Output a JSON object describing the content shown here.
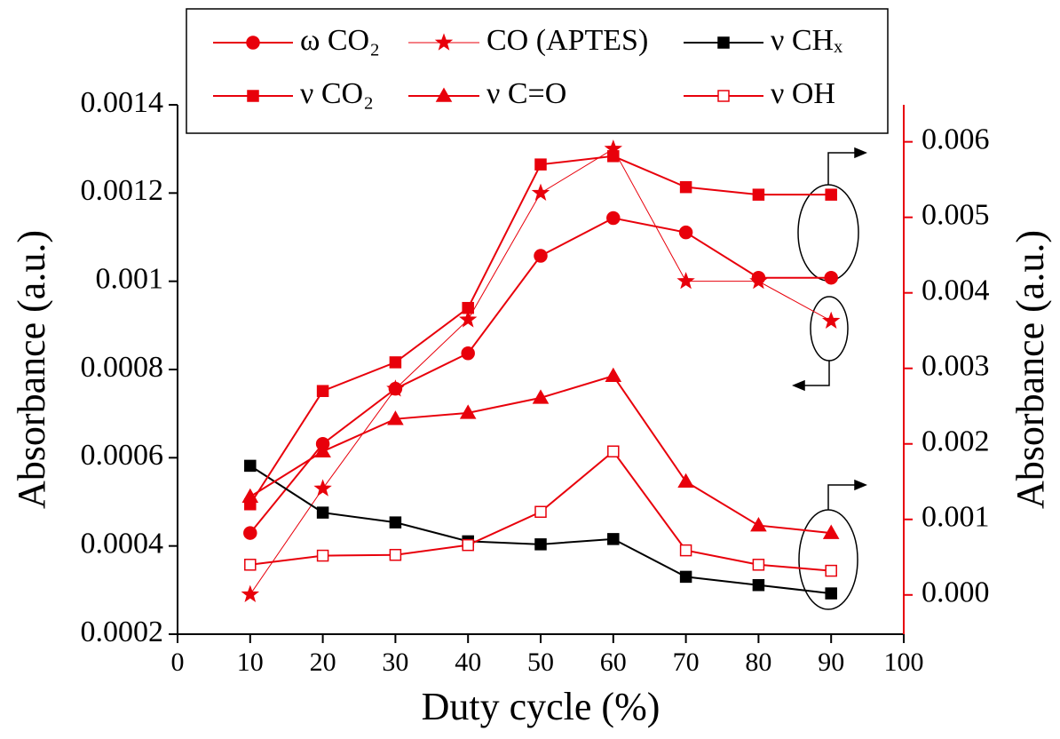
{
  "chart_data": {
    "type": "line",
    "xlabel": "Duty cycle (%)",
    "ylabel": "Absorbance (a.u.)",
    "y2label": "Absorbance (a.u.)",
    "xlim": [
      0,
      100
    ],
    "xticks": [
      0,
      10,
      20,
      30,
      40,
      50,
      60,
      70,
      80,
      90,
      100
    ],
    "ylim": [
      0.0002,
      0.0014
    ],
    "yticks": [
      0.0002,
      0.0004,
      0.0006,
      0.0008,
      0.001,
      0.0012,
      0.0014
    ],
    "y2lim": [
      -0.00052,
      0.00649
    ],
    "y2ticks": [
      {
        "value": 0,
        "label": "0.000"
      },
      0.001,
      0.002,
      0.003,
      0.004,
      0.005,
      0.006
    ],
    "y2color": "#e8000b",
    "x": [
      10,
      20,
      30,
      40,
      50,
      60,
      70,
      80,
      90
    ],
    "series": [
      {
        "name": "ω CO₂",
        "color": "#e8000b",
        "marker": "circle",
        "axis": "y2",
        "values": [
          0.00082,
          0.002,
          0.00273,
          0.0032,
          0.00449,
          0.00499,
          0.0048,
          0.0042,
          0.0042
        ]
      },
      {
        "name": "CO (APTES)",
        "color": "#e8000b",
        "marker": "star",
        "thin": true,
        "values": [
          0.00029,
          0.00053,
          0.000756,
          0.000913,
          0.0012,
          0.0013,
          0.001,
          0.001,
          0.00091
        ]
      },
      {
        "name": "ν CHₓ",
        "color": "#000000",
        "marker": "square",
        "axis": "y2",
        "values": [
          0.00171,
          0.00109,
          0.00096,
          0.00071,
          0.00067,
          0.00074,
          0.00024,
          0.00013,
          2e-05
        ]
      },
      {
        "name": "ν CO₂",
        "color": "#e8000b",
        "marker": "square",
        "axis": "y2",
        "values": [
          0.0012,
          0.0027,
          0.00308,
          0.0038,
          0.0057,
          0.00581,
          0.0054,
          0.0053,
          0.0053
        ]
      },
      {
        "name": "ν C=O",
        "color": "#e8000b",
        "marker": "triangle",
        "axis": "y2",
        "values": [
          0.0013,
          0.0019,
          0.00233,
          0.00241,
          0.00261,
          0.0029,
          0.0015,
          0.00092,
          0.00082
        ]
      },
      {
        "name": "ν OH",
        "color": "#e8000b",
        "marker": "open-square",
        "axis": "y2",
        "values": [
          0.0004,
          0.00052,
          0.00053,
          0.00066,
          0.0011,
          0.0019,
          0.00059,
          0.0004,
          0.00032
        ]
      }
    ]
  }
}
